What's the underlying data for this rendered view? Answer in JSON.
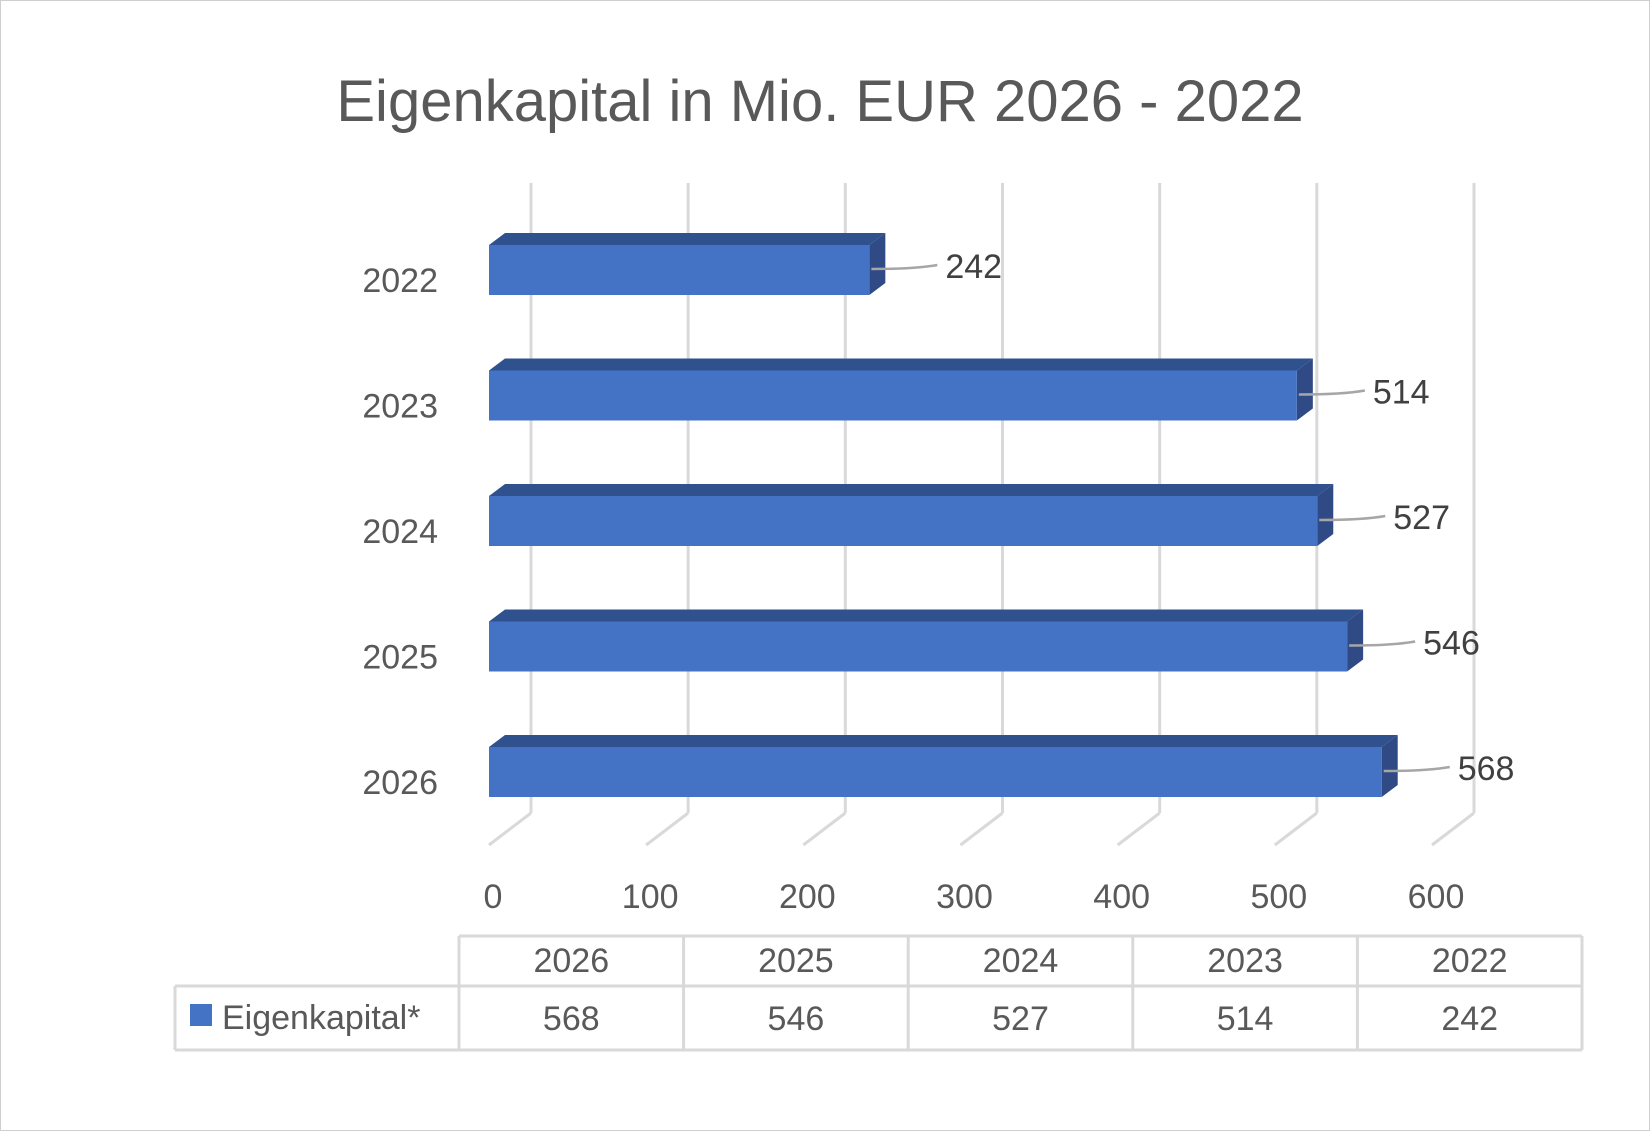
{
  "chart_data": {
    "type": "bar",
    "orientation": "horizontal",
    "style": "3d",
    "title": "Eigenkapital in Mio. EUR 2026 - 2022",
    "categories": [
      "2026",
      "2025",
      "2024",
      "2023",
      "2022"
    ],
    "series": [
      {
        "name": "Eigenkapital*",
        "values": [
          568,
          546,
          527,
          514,
          242
        ]
      }
    ],
    "xlim": [
      0,
      600
    ],
    "xticks": [
      "0",
      "100",
      "200",
      "300",
      "400",
      "500",
      "600"
    ],
    "data_labels": [
      "568",
      "546",
      "527",
      "514",
      "242"
    ],
    "grid": "vertical",
    "data_table": true,
    "colors": {
      "bar": "#4472c4",
      "bar_top": "#2f528f",
      "bar_side": "#2f4a85",
      "grid": "#d9d9d9"
    }
  }
}
